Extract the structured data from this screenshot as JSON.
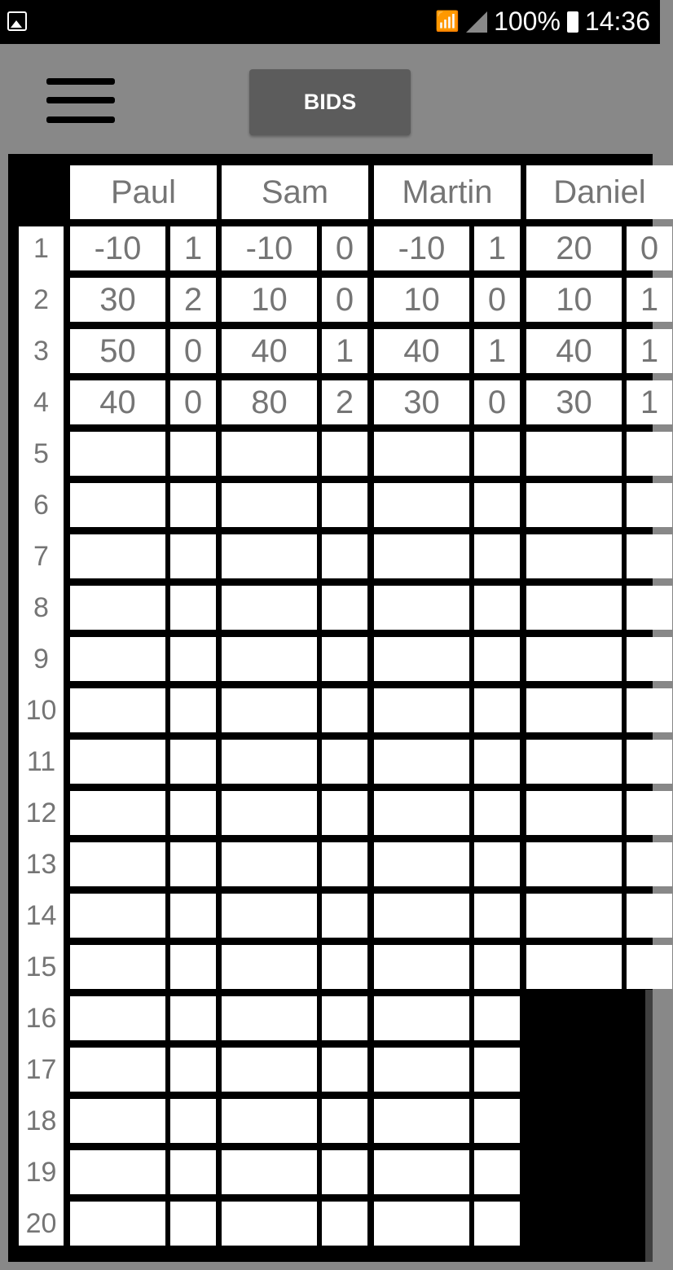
{
  "status_bar": {
    "battery": "100%",
    "time": "14:36",
    "icons": [
      "image-icon",
      "wifi-icon",
      "signal-icon",
      "battery-icon"
    ]
  },
  "toolbar": {
    "menu_icon": "hamburger-menu-icon",
    "bids_label": "BIDS"
  },
  "table": {
    "players": [
      "Paul",
      "Sam",
      "Martin",
      "Daniel"
    ],
    "row_numbers": [
      "1",
      "2",
      "3",
      "4",
      "5",
      "6",
      "7",
      "8",
      "9",
      "10",
      "11",
      "12",
      "13",
      "14",
      "15",
      "16",
      "17",
      "18",
      "19",
      "20"
    ],
    "visible_rows_per_player": [
      20,
      20,
      20,
      15
    ],
    "rows": [
      [
        [
          "-10",
          "1"
        ],
        [
          "-10",
          "0"
        ],
        [
          "-10",
          "1"
        ],
        [
          "20",
          "0"
        ]
      ],
      [
        [
          "30",
          "2"
        ],
        [
          "10",
          "0"
        ],
        [
          "10",
          "0"
        ],
        [
          "10",
          "1"
        ]
      ],
      [
        [
          "50",
          "0"
        ],
        [
          "40",
          "1"
        ],
        [
          "40",
          "1"
        ],
        [
          "40",
          "1"
        ]
      ],
      [
        [
          "40",
          "0"
        ],
        [
          "80",
          "2"
        ],
        [
          "30",
          "0"
        ],
        [
          "30",
          "1"
        ]
      ]
    ]
  }
}
